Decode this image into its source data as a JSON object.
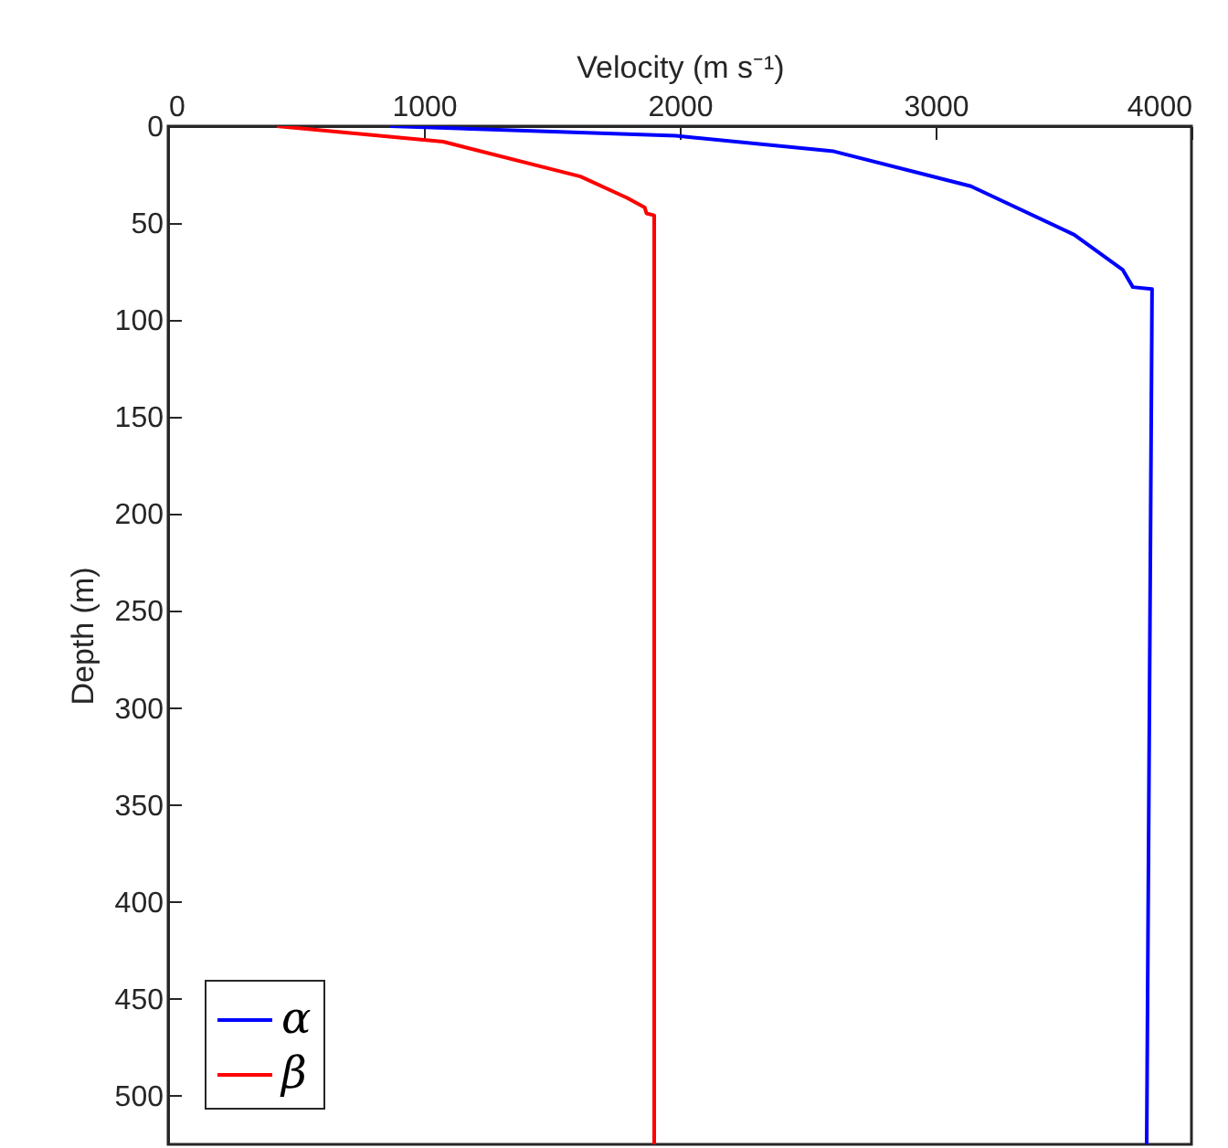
{
  "chart_data": {
    "type": "line",
    "xlabel": "Velocity (m s⁻¹)",
    "ylabel": "Depth (m)",
    "xlim": [
      0,
      4000
    ],
    "xticks": [
      0,
      1000,
      2000,
      3000,
      4000
    ],
    "ylim": [
      525,
      0
    ],
    "yticks": [
      0,
      50,
      100,
      150,
      200,
      250,
      300,
      350,
      400,
      450,
      500
    ],
    "legend": "bottom left",
    "series": [
      {
        "name": "α",
        "color": "#0000ff",
        "x": [
          868,
          1984,
          2602,
          3138,
          3542,
          3731,
          3771,
          3846,
          3825
        ],
        "values": [
          0,
          5,
          13,
          31,
          56,
          74,
          83,
          84,
          525
        ]
      },
      {
        "name": "β",
        "color": "#ff0000",
        "x": [
          425,
          1075,
          1612,
          1794,
          1863,
          1870,
          1900,
          1900
        ],
        "values": [
          0,
          8,
          26,
          37,
          42,
          45,
          46,
          525
        ]
      }
    ]
  }
}
